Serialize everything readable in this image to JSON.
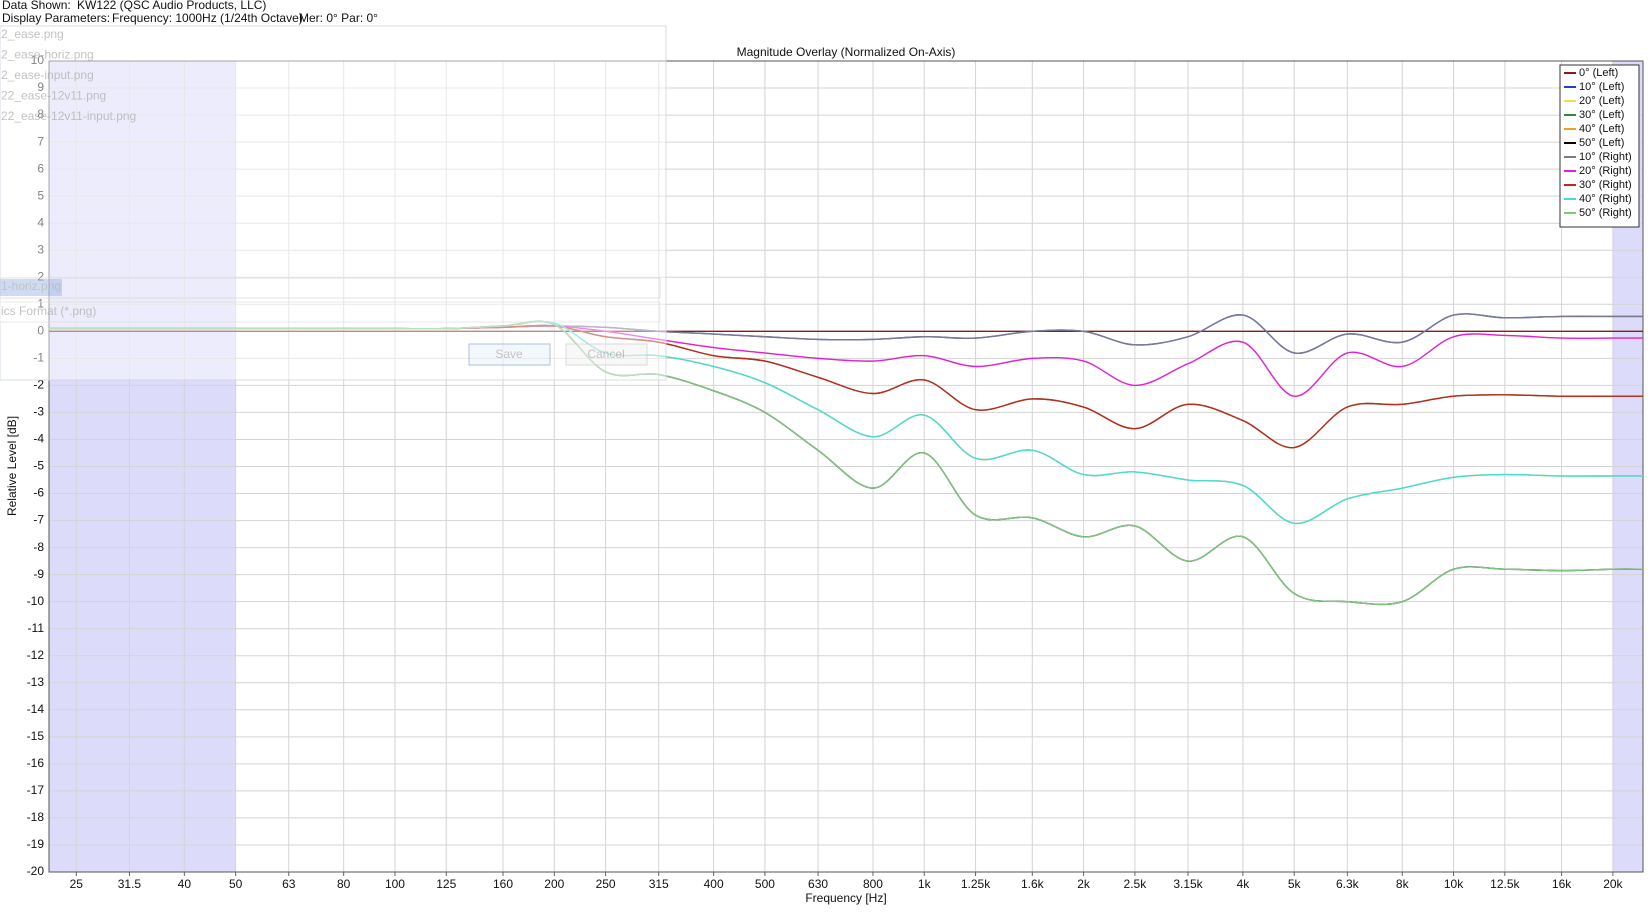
{
  "header": {
    "data_shown_label": "Data Shown:",
    "data_shown": "KW122 (QSC Audio Products, LLC)",
    "display_parameters_label": "Display Parameters:",
    "frequency": "Frequency: 1000Hz (1/24th Octave)",
    "angles": "Mer: 0°  Par: 0°"
  },
  "dialog": {
    "files": [
      "2_ease.png",
      "2_ease-horiz.png",
      "2_ease-input.png",
      "22_ease-12v11.png",
      "22_ease-12v11-input.png"
    ],
    "filename": "1-horiz.png",
    "filetype": "ics Format (*.png)",
    "save": "Save",
    "cancel": "Cancel"
  },
  "chart_data": {
    "type": "line",
    "title": "Magnitude Overlay (Normalized On-Axis)",
    "x_label": "Frequency [Hz]",
    "y_label": "Relative Level [dB]",
    "x_scale": "log",
    "xlim": [
      22.2,
      22800
    ],
    "ylim": [
      -20,
      10
    ],
    "grid": true,
    "legend": "upper right",
    "shaded_ranges": [
      [
        22.2,
        50
      ],
      [
        20000,
        22800
      ]
    ],
    "xticks": [
      25,
      31.5,
      40,
      50,
      63,
      80,
      100,
      125,
      160,
      200,
      250,
      315,
      400,
      500,
      630,
      800,
      {
        "value": 1000,
        "label": "1k"
      },
      {
        "value": 1250,
        "label": "1.25k"
      },
      {
        "value": 1600,
        "label": "1.6k"
      },
      {
        "value": 2000,
        "label": "2k"
      },
      {
        "value": 2500,
        "label": "2.5k"
      },
      {
        "value": 3150,
        "label": "3.15k"
      },
      {
        "value": 4000,
        "label": "4k"
      },
      {
        "value": 5000,
        "label": "5k"
      },
      {
        "value": 6300,
        "label": "6.3k"
      },
      {
        "value": 8000,
        "label": "8k"
      },
      {
        "value": 10000,
        "label": "10k"
      },
      {
        "value": 12500,
        "label": "12.5k"
      },
      {
        "value": 16000,
        "label": "16k"
      },
      {
        "value": 20000,
        "label": "20k"
      }
    ],
    "yticks": [
      10,
      9,
      8,
      7,
      6,
      5,
      4,
      3,
      2,
      1,
      0,
      -1,
      -2,
      -3,
      -4,
      -5,
      -6,
      -7,
      -8,
      -9,
      -10,
      -11,
      -12,
      -13,
      -14,
      -15,
      -16,
      -17,
      -18,
      -19,
      -20
    ],
    "x": [
      22.2,
      25,
      31.5,
      40,
      50,
      63,
      80,
      100,
      125,
      160,
      200,
      250,
      315,
      400,
      500,
      630,
      800,
      1000,
      1250,
      1600,
      2000,
      2500,
      3150,
      4000,
      5000,
      6300,
      8000,
      10000,
      12500,
      16000,
      20000,
      22800
    ],
    "series": [
      {
        "name": "0° (Left)",
        "color": "#8b1a1a",
        "values": [
          0,
          0,
          0,
          0,
          0,
          0,
          0,
          0,
          0,
          0,
          0,
          0,
          0,
          0,
          0,
          0,
          0,
          0,
          0,
          0,
          0,
          0,
          0,
          0,
          0,
          0,
          0,
          0,
          0,
          0,
          0,
          0
        ]
      },
      {
        "name": "10° (Left)",
        "color": "#2040d0",
        "values": [
          0.1,
          0.1,
          0.1,
          0.1,
          0.1,
          0.1,
          0.1,
          0.1,
          0.1,
          0.15,
          0.2,
          0.15,
          0,
          -0.1,
          -0.2,
          -0.3,
          -0.3,
          -0.2,
          -0.25,
          0,
          0,
          -0.5,
          -0.2,
          0.6,
          -0.8,
          -0.1,
          -0.4,
          0.6,
          0.5,
          0.55,
          0.55,
          0.55
        ]
      },
      {
        "name": "20° (Left)",
        "color": "#f0e040",
        "values": [
          0.1,
          0.1,
          0.1,
          0.1,
          0.1,
          0.1,
          0.1,
          0.1,
          0.1,
          0.15,
          0.2,
          0,
          -0.3,
          -0.6,
          -0.8,
          -1.0,
          -1.1,
          -0.9,
          -1.3,
          -1.0,
          -1.1,
          -2.0,
          -1.2,
          -0.4,
          -2.4,
          -0.8,
          -1.3,
          -0.2,
          -0.15,
          -0.25,
          -0.25,
          -0.25
        ]
      },
      {
        "name": "30° (Left)",
        "color": "#2e8b2e",
        "values": [
          0.1,
          0.1,
          0.1,
          0.1,
          0.1,
          0.1,
          0.1,
          0.1,
          0.1,
          0.15,
          0.2,
          -0.2,
          -0.4,
          -0.9,
          -1.1,
          -1.7,
          -2.3,
          -1.8,
          -2.9,
          -2.5,
          -2.8,
          -3.6,
          -2.7,
          -3.3,
          -4.3,
          -2.8,
          -2.7,
          -2.4,
          -2.35,
          -2.4,
          -2.4,
          -2.4
        ]
      },
      {
        "name": "40° (Left)",
        "color": "#f0a020",
        "values": [
          0.1,
          0.1,
          0.1,
          0.1,
          0.1,
          0.1,
          0.1,
          0.1,
          0.1,
          0.2,
          0.3,
          -0.8,
          -0.9,
          -1.3,
          -1.9,
          -2.9,
          -3.9,
          -3.1,
          -4.7,
          -4.4,
          -5.3,
          -5.2,
          -5.5,
          -5.7,
          -7.1,
          -6.2,
          -5.8,
          -5.4,
          -5.3,
          -5.35,
          -5.35,
          -5.35
        ]
      },
      {
        "name": "50° (Left)",
        "color": "#000000",
        "values": [
          0.1,
          0.1,
          0.1,
          0.1,
          0.1,
          0.1,
          0.1,
          0.1,
          0.1,
          0.2,
          0.25,
          -1.5,
          -1.6,
          -2.2,
          -3.0,
          -4.4,
          -5.8,
          -4.5,
          -6.8,
          -6.9,
          -7.6,
          -7.2,
          -8.5,
          -7.6,
          -9.7,
          -10.0,
          -10.0,
          -8.8,
          -8.8,
          -8.85,
          -8.8,
          -8.8
        ]
      },
      {
        "name": "10° (Right)",
        "color": "#7a7a90",
        "values": [
          0.1,
          0.1,
          0.1,
          0.1,
          0.1,
          0.1,
          0.1,
          0.1,
          0.1,
          0.15,
          0.2,
          0.15,
          0,
          -0.1,
          -0.2,
          -0.3,
          -0.3,
          -0.2,
          -0.25,
          0,
          0,
          -0.5,
          -0.2,
          0.6,
          -0.8,
          -0.1,
          -0.4,
          0.6,
          0.5,
          0.55,
          0.55,
          0.55
        ]
      },
      {
        "name": "20° (Right)",
        "color": "#e020e0",
        "values": [
          0.1,
          0.1,
          0.1,
          0.1,
          0.1,
          0.1,
          0.1,
          0.1,
          0.1,
          0.15,
          0.2,
          0,
          -0.3,
          -0.6,
          -0.8,
          -1.0,
          -1.1,
          -0.9,
          -1.3,
          -1.0,
          -1.1,
          -2.0,
          -1.2,
          -0.4,
          -2.4,
          -0.8,
          -1.3,
          -0.2,
          -0.15,
          -0.25,
          -0.25,
          -0.25
        ]
      },
      {
        "name": "30° (Right)",
        "color": "#c0281e",
        "values": [
          0.1,
          0.1,
          0.1,
          0.1,
          0.1,
          0.1,
          0.1,
          0.1,
          0.1,
          0.15,
          0.2,
          -0.2,
          -0.4,
          -0.9,
          -1.1,
          -1.7,
          -2.3,
          -1.8,
          -2.9,
          -2.5,
          -2.8,
          -3.6,
          -2.7,
          -3.3,
          -4.3,
          -2.8,
          -2.7,
          -2.4,
          -2.35,
          -2.4,
          -2.4,
          -2.4
        ]
      },
      {
        "name": "40° (Right)",
        "color": "#40e0d8",
        "values": [
          0.1,
          0.1,
          0.1,
          0.1,
          0.1,
          0.1,
          0.1,
          0.1,
          0.1,
          0.2,
          0.3,
          -0.8,
          -0.9,
          -1.3,
          -1.9,
          -2.9,
          -3.9,
          -3.1,
          -4.7,
          -4.4,
          -5.3,
          -5.2,
          -5.5,
          -5.7,
          -7.1,
          -6.2,
          -5.8,
          -5.4,
          -5.3,
          -5.35,
          -5.35,
          -5.35
        ]
      },
      {
        "name": "50° (Right)",
        "color": "#80c880",
        "values": [
          0.1,
          0.1,
          0.1,
          0.1,
          0.1,
          0.1,
          0.1,
          0.1,
          0.1,
          0.2,
          0.25,
          -1.5,
          -1.6,
          -2.2,
          -3.0,
          -4.4,
          -5.8,
          -4.5,
          -6.8,
          -6.9,
          -7.6,
          -7.2,
          -8.5,
          -7.6,
          -9.7,
          -10.0,
          -10.0,
          -8.8,
          -8.8,
          -8.85,
          -8.8,
          -8.8
        ]
      }
    ]
  }
}
